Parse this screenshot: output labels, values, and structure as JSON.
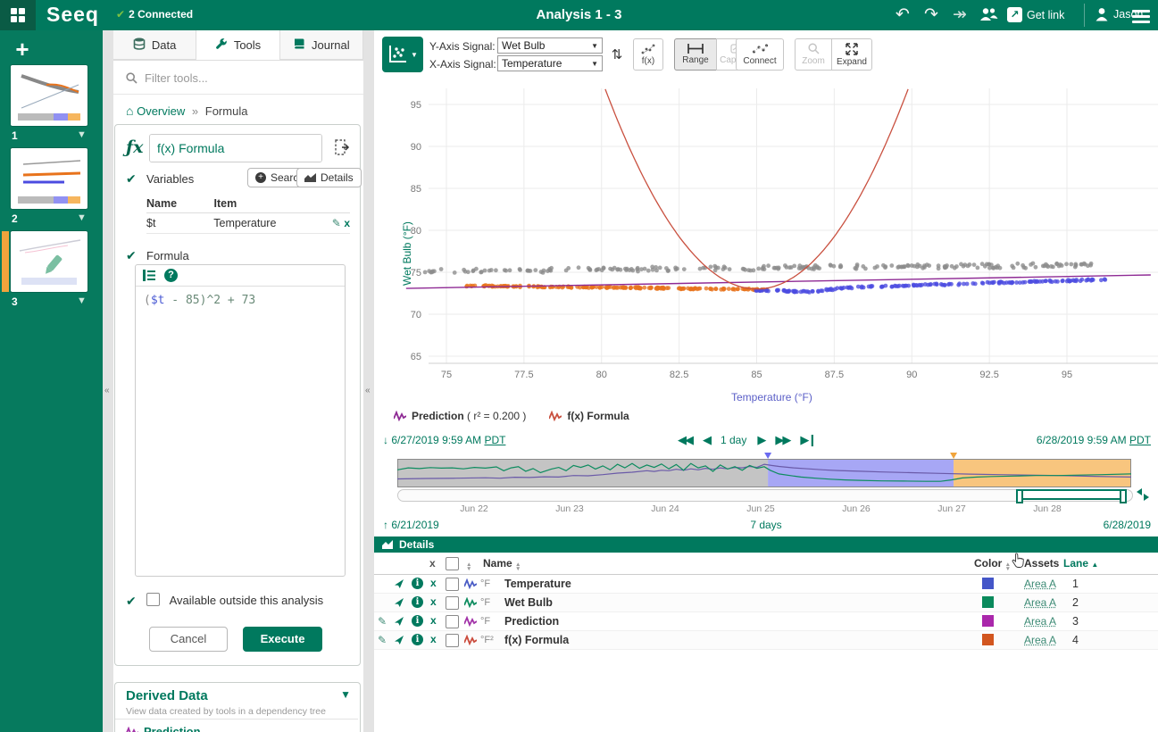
{
  "app": {
    "brand": "Seeq",
    "connection_status": "2 Connected",
    "title": "Analysis 1 - 3",
    "get_link_label": "Get link",
    "user_name": "Jason"
  },
  "sidebar": {
    "thumbnails": [
      {
        "label": "1",
        "active": false
      },
      {
        "label": "2",
        "active": false
      },
      {
        "label": "3",
        "active": true
      }
    ]
  },
  "tools_panel": {
    "tabs": [
      {
        "label": "Data",
        "icon": "database-icon",
        "active": false
      },
      {
        "label": "Tools",
        "icon": "wrench-icon",
        "active": true
      },
      {
        "label": "Journal",
        "icon": "book-icon",
        "active": false
      }
    ],
    "filter_placeholder": "Filter tools...",
    "breadcrumb": {
      "home": "Overview",
      "separator": "»",
      "current": "Formula"
    },
    "formula_tool": {
      "title_value": "f(x) Formula",
      "fx_glyph": "ƒx",
      "color_swatch": "#c75a1e",
      "variables_label": "Variables",
      "search_button": "Search",
      "details_button": "Details",
      "variables_table": {
        "headers": [
          "Name",
          "Item"
        ],
        "rows": [
          {
            "name": "$t",
            "item": "Temperature"
          }
        ]
      },
      "formula_label": "Formula",
      "formula_tokens": [
        {
          "text": "(",
          "color": "#8a8a8a"
        },
        {
          "text": "$t",
          "color": "#4a5ad4"
        },
        {
          "text": " - 85)^2 + 73",
          "color": "#6a8a78"
        }
      ],
      "available_checkbox_label": "Available outside this analysis",
      "cancel_button": "Cancel",
      "execute_button": "Execute"
    },
    "derived_data": {
      "title": "Derived Data",
      "subtitle": "View data created by tools in a dependency tree",
      "items": [
        {
          "label": "Prediction",
          "color": "#a232a8"
        }
      ]
    }
  },
  "chart_toolbar": {
    "y_axis_label": "Y-Axis Signal:",
    "y_axis_value": "Wet Bulb",
    "x_axis_label": "X-Axis Signal:",
    "x_axis_value": "Temperature",
    "fx_label": "f(x)",
    "range_label": "Range",
    "capsules_label": "Capsules",
    "connect_label": "Connect",
    "zoom_label": "Zoom",
    "expand_label": "Expand"
  },
  "chart_data": {
    "type": "scatter",
    "xlabel": "Temperature (°F)",
    "ylabel": "Wet Bulb (°F)",
    "xlim": [
      73.7,
      97.7
    ],
    "ylim": [
      63.4,
      97.6
    ],
    "x_ticks": [
      75,
      77.5,
      80,
      82.5,
      85,
      87.5,
      90,
      92.5,
      95
    ],
    "y_ticks": [
      65,
      70,
      75,
      80,
      85,
      90,
      95
    ],
    "grid": true,
    "series": [
      {
        "name": "earlier-period-points",
        "type": "scatter",
        "color": "#8c8c8c",
        "count": 230,
        "x_start": 74.3,
        "x_end": 96.3,
        "y_at_start": 75.1,
        "y_at_end": 75.9,
        "noise": 0.32,
        "seed": 7
      },
      {
        "name": "middle-period-points",
        "type": "scatter",
        "color": "#e8731c",
        "count": 190,
        "x_start": 75.6,
        "x_end": 85.4,
        "y_at_start": 73.4,
        "y_at_end": 72.95,
        "noise": 0.1,
        "seed": 11
      },
      {
        "name": "recent-period-points",
        "type": "scatter",
        "color": "#4b4be0",
        "count": 175,
        "x_start": 84.9,
        "x_end": 96.3,
        "y_at_start": 72.85,
        "y_at_end": 74.15,
        "noise": 0.12,
        "seed": 23,
        "dip": {
          "x": 86.6,
          "amount": 0.38,
          "width": 0.9
        }
      },
      {
        "name": "Prediction",
        "type": "line",
        "color": "#8e2a94",
        "points": [
          [
            73.7,
            73.08
          ],
          [
            97.7,
            74.68
          ]
        ]
      },
      {
        "name": "f(x) Formula",
        "type": "parabola",
        "color": "#c9503f",
        "formula": "($t - 85)^2 + 73",
        "vertex": [
          85,
          73
        ]
      }
    ],
    "minimap": {
      "regions": [
        {
          "name": "earlier-period",
          "color": "#b5b5b5",
          "from": 0,
          "to": 50.5
        },
        {
          "name": "middle-period",
          "color": "#9191f2",
          "from": 50.5,
          "to": 75.8
        },
        {
          "name": "recent-period",
          "color": "#f6b65e",
          "from": 75.8,
          "to": 100
        }
      ],
      "markers": [
        {
          "at": 50.5,
          "color": "#6b6bf0"
        },
        {
          "at": 75.8,
          "color": "#f0a43c"
        }
      ],
      "green_trace": [
        [
          0,
          38
        ],
        [
          1.5,
          30
        ],
        [
          3,
          33
        ],
        [
          4.5,
          29
        ],
        [
          6,
          31
        ],
        [
          7.5,
          30
        ],
        [
          9,
          34
        ],
        [
          10.5,
          28
        ],
        [
          12,
          31
        ],
        [
          13.5,
          26
        ],
        [
          14.5,
          42
        ],
        [
          15.5,
          30
        ],
        [
          16.5,
          25
        ],
        [
          17.5,
          44
        ],
        [
          18.5,
          33
        ],
        [
          19.5,
          50
        ],
        [
          21,
          35
        ],
        [
          22,
          28
        ],
        [
          23,
          42
        ],
        [
          24,
          20
        ],
        [
          25,
          28
        ],
        [
          26,
          18
        ],
        [
          27,
          35
        ],
        [
          28,
          22
        ],
        [
          29,
          38
        ],
        [
          30,
          15
        ],
        [
          31,
          30
        ],
        [
          32,
          12
        ],
        [
          33,
          32
        ],
        [
          34,
          18
        ],
        [
          35,
          28
        ],
        [
          36,
          14
        ],
        [
          37,
          34
        ],
        [
          38,
          16
        ],
        [
          39,
          40
        ],
        [
          40,
          12
        ],
        [
          41,
          30
        ],
        [
          42,
          22
        ],
        [
          43,
          45
        ],
        [
          44,
          18
        ],
        [
          45,
          35
        ],
        [
          46,
          25
        ],
        [
          47,
          40
        ],
        [
          48,
          20
        ],
        [
          49,
          32
        ],
        [
          50,
          25
        ],
        [
          50.8,
          40
        ],
        [
          52,
          55
        ],
        [
          53.5,
          62
        ],
        [
          55,
          68
        ],
        [
          57,
          73
        ],
        [
          59,
          77
        ],
        [
          61,
          80
        ],
        [
          63,
          82
        ],
        [
          66,
          84
        ],
        [
          69,
          85
        ],
        [
          72,
          86
        ],
        [
          74,
          86
        ],
        [
          75.5,
          80
        ],
        [
          77,
          72
        ],
        [
          79,
          68
        ],
        [
          81,
          66
        ],
        [
          84,
          64
        ],
        [
          87,
          62
        ],
        [
          90,
          62
        ],
        [
          93,
          60
        ],
        [
          96,
          58
        ],
        [
          100,
          55
        ]
      ],
      "purple_trace": [
        [
          0,
          76
        ],
        [
          4,
          74
        ],
        [
          8,
          73
        ],
        [
          12,
          71
        ],
        [
          14,
          73
        ],
        [
          16,
          69
        ],
        [
          18,
          70
        ],
        [
          20,
          67
        ],
        [
          22,
          68
        ],
        [
          24,
          62
        ],
        [
          26,
          63
        ],
        [
          28,
          58
        ],
        [
          30,
          52
        ],
        [
          32,
          48
        ],
        [
          34,
          42
        ],
        [
          35,
          45
        ],
        [
          36,
          40
        ],
        [
          37,
          42
        ],
        [
          38,
          36
        ],
        [
          39,
          40
        ],
        [
          40,
          34
        ],
        [
          41,
          38
        ],
        [
          42,
          32
        ],
        [
          43,
          36
        ],
        [
          44,
          30
        ],
        [
          45,
          34
        ],
        [
          46,
          28
        ],
        [
          47,
          30
        ],
        [
          48,
          24
        ],
        [
          49,
          28
        ],
        [
          50,
          15
        ],
        [
          51,
          20
        ],
        [
          52,
          24
        ],
        [
          54,
          30
        ],
        [
          56,
          34
        ],
        [
          58,
          38
        ],
        [
          60,
          41
        ],
        [
          63,
          44
        ],
        [
          66,
          47
        ],
        [
          70,
          50
        ],
        [
          74,
          53
        ],
        [
          78,
          56
        ],
        [
          82,
          58
        ],
        [
          86,
          60
        ],
        [
          90,
          62
        ],
        [
          95,
          65
        ],
        [
          100,
          68
        ]
      ]
    }
  },
  "legend": [
    {
      "label": "Prediction",
      "suffix": " ( r² = 0.200 )",
      "color": "#8e2a94"
    },
    {
      "label": "f(x) Formula",
      "suffix": "",
      "color": "#c9503f"
    }
  ],
  "display_range": {
    "start": "6/27/2019 9:59 AM",
    "start_tz": "PDT",
    "end": "6/28/2019 9:59 AM",
    "end_tz": "PDT",
    "step_label": "1 day"
  },
  "investigate_range": {
    "start": "6/21/2019",
    "duration": "7 days",
    "end": "6/28/2019",
    "date_ticks": [
      "Jun 22",
      "Jun 23",
      "Jun 24",
      "Jun 25",
      "Jun 26",
      "Jun 27",
      "Jun 28"
    ]
  },
  "details_panel": {
    "title": "Details",
    "columns": {
      "x": "x",
      "name": "Name",
      "color": "Color",
      "assets": "Assets",
      "lane": "Lane"
    },
    "rows": [
      {
        "editable": false,
        "unit": "°F",
        "name": "Temperature",
        "signal_color": "#4a5cc5",
        "swatch": "#4456c8",
        "asset": "Area A",
        "lane": "1"
      },
      {
        "editable": false,
        "unit": "°F",
        "name": "Wet Bulb",
        "signal_color": "#0d8c5f",
        "swatch": "#0a8a5c",
        "asset": "Area A",
        "lane": "2"
      },
      {
        "editable": true,
        "unit": "°F",
        "name": "Prediction",
        "signal_color": "#a232a8",
        "swatch": "#aa27ab",
        "asset": "Area A",
        "lane": "3"
      },
      {
        "editable": true,
        "unit": "°F²",
        "name": "f(x) Formula",
        "signal_color": "#cb4b3c",
        "swatch": "#d2561f",
        "asset": "Area A",
        "lane": "4"
      }
    ]
  }
}
